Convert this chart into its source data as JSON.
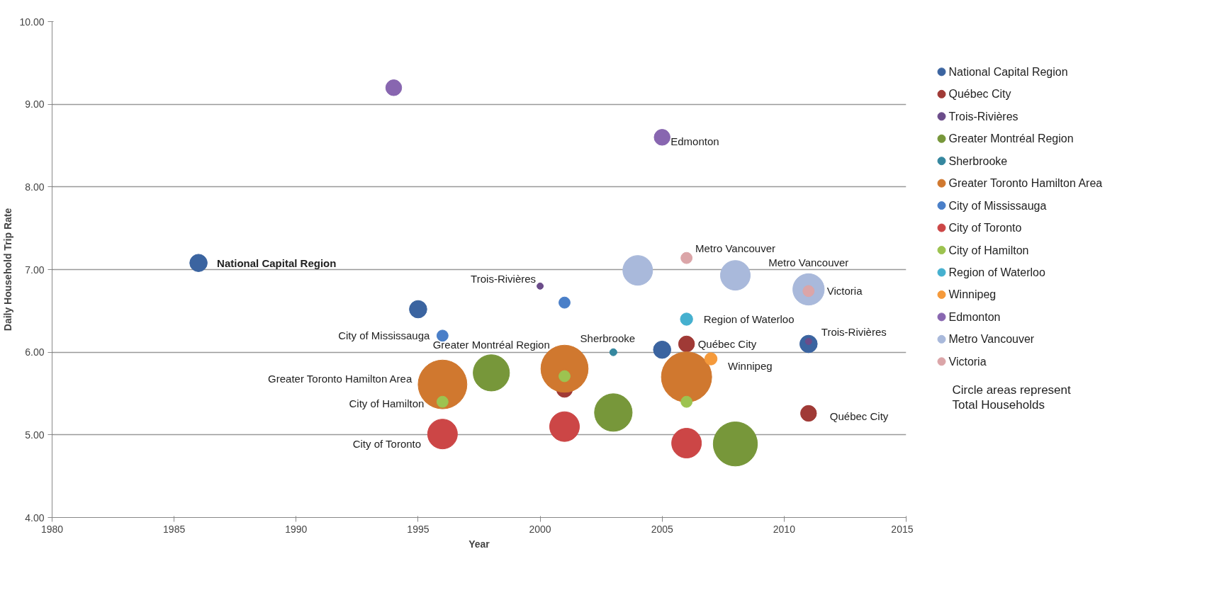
{
  "chart_data": {
    "type": "bubble",
    "xlabel": "Year",
    "ylabel": "Daily Household Trip Rate",
    "xlim": [
      1980,
      2015
    ],
    "xticks": [
      1980,
      1985,
      1990,
      1995,
      2000,
      2005,
      2010,
      2015
    ],
    "ylim": [
      4,
      10
    ],
    "yticks": [
      {
        "value": 4,
        "label": "4.00"
      },
      {
        "value": 5,
        "label": "5.00"
      },
      {
        "value": 6,
        "label": "6.00"
      },
      {
        "value": 7,
        "label": "7.00"
      },
      {
        "value": 8,
        "label": "8.00"
      },
      {
        "value": 9,
        "label": "9.00"
      },
      {
        "value": 10,
        "label": "10.00"
      }
    ],
    "grid": "y",
    "legend": "right",
    "marker": "circle",
    "series": [
      {
        "name": "National Capital Region",
        "color": "#3b64a0",
        "x": [
          1986,
          1995,
          2005,
          2011
        ],
        "values": [
          7.08,
          6.52,
          6.03,
          6.1
        ],
        "sizes": [
          0.12,
          0.12,
          0.12,
          0.12
        ]
      },
      {
        "name": "Québec City",
        "color": "#a03a36",
        "x": [
          2001,
          2006,
          2011
        ],
        "values": [
          5.55,
          6.1,
          5.26
        ],
        "sizes": [
          0.1,
          0.1,
          0.1
        ]
      },
      {
        "name": "Trois-Rivières",
        "color": "#6b4c8a",
        "x": [
          2000,
          2011
        ],
        "values": [
          6.8,
          6.13
        ],
        "sizes": [
          0.016,
          0.016
        ]
      },
      {
        "name": "Greater Montréal Region",
        "color": "#77973a",
        "x": [
          1998,
          2003,
          2008
        ],
        "values": [
          5.75,
          5.27,
          4.89
        ],
        "sizes": [
          0.52,
          0.56,
          0.77
        ]
      },
      {
        "name": "Sherbrooke",
        "color": "#35879f",
        "x": [
          2003
        ],
        "values": [
          6.0
        ],
        "sizes": [
          0.02
        ]
      },
      {
        "name": "Greater Toronto Hamilton Area",
        "color": "#d0782f",
        "x": [
          1996,
          2001,
          2006
        ],
        "values": [
          5.61,
          5.8,
          5.7
        ],
        "sizes": [
          0.94,
          0.88,
          1
        ]
      },
      {
        "name": "City of Mississauga",
        "color": "#4a7fc8",
        "x": [
          1996,
          2001
        ],
        "values": [
          6.2,
          6.6
        ],
        "sizes": [
          0.05,
          0.05
        ]
      },
      {
        "name": "City of Toronto",
        "color": "#cc4646",
        "x": [
          1996,
          2001,
          2006
        ],
        "values": [
          5.01,
          5.1,
          4.9
        ],
        "sizes": [
          0.35,
          0.35,
          0.35
        ]
      },
      {
        "name": "City of Hamilton",
        "color": "#9dc350",
        "x": [
          1996,
          2001,
          2006
        ],
        "values": [
          5.4,
          5.71,
          5.4
        ],
        "sizes": [
          0.05,
          0.05,
          0.05
        ]
      },
      {
        "name": "Region of Waterloo",
        "color": "#45b0cf",
        "x": [
          2006
        ],
        "values": [
          6.4
        ],
        "sizes": [
          0.06
        ]
      },
      {
        "name": "Winnipeg",
        "color": "#f59a3b",
        "x": [
          2007
        ],
        "values": [
          5.92
        ],
        "sizes": [
          0.06
        ]
      },
      {
        "name": "Edmonton",
        "color": "#8866b0",
        "x": [
          1994,
          2005
        ],
        "values": [
          9.2,
          8.6
        ],
        "sizes": [
          0.1,
          0.1
        ]
      },
      {
        "name": "Metro Vancouver",
        "color": "#a9b9db",
        "x": [
          2004,
          2008,
          2011
        ],
        "values": [
          6.99,
          6.93,
          6.76
        ],
        "sizes": [
          0.35,
          0.35,
          0.39
        ]
      },
      {
        "name": "Victoria",
        "color": "#dba5a8",
        "x": [
          2006,
          2011
        ],
        "values": [
          7.14,
          6.74
        ],
        "sizes": [
          0.05,
          0.05
        ]
      }
    ],
    "annotations": [
      {
        "text": "National Capital Region",
        "x": 1986,
        "y": 7.08
      },
      {
        "text": "Trois-Rivières",
        "x": 2000,
        "y": 6.8
      },
      {
        "text": "City of Mississauga",
        "x": 1996,
        "y": 6.2
      },
      {
        "text": "Greater Montréal Region",
        "x": 1998,
        "y": 5.75
      },
      {
        "text": "Greater Toronto Hamilton Area",
        "x": 1996,
        "y": 5.61
      },
      {
        "text": "City of Hamilton",
        "x": 1996,
        "y": 5.4
      },
      {
        "text": "City of Toronto",
        "x": 1996,
        "y": 5.01
      },
      {
        "text": "Sherbrooke",
        "x": 2003,
        "y": 6.0
      },
      {
        "text": "Edmonton",
        "x": 2005,
        "y": 8.6
      },
      {
        "text": "Québec City",
        "x": 2006,
        "y": 6.1
      },
      {
        "text": "Winnipeg",
        "x": 2007,
        "y": 5.92
      },
      {
        "text": "Region of Waterloo",
        "x": 2006,
        "y": 6.4
      },
      {
        "text": "Metro Vancouver",
        "x": 2008,
        "y": 6.93
      },
      {
        "text": "Metro Vancouver",
        "x": 2011,
        "y": 6.76
      },
      {
        "text": "Victoria",
        "x": 2011,
        "y": 6.74
      },
      {
        "text": "Trois-Rivières",
        "x": 2011,
        "y": 6.13
      },
      {
        "text": "Québec City",
        "x": 2011,
        "y": 5.26
      },
      "Circle areas represent Total Households"
    ]
  }
}
